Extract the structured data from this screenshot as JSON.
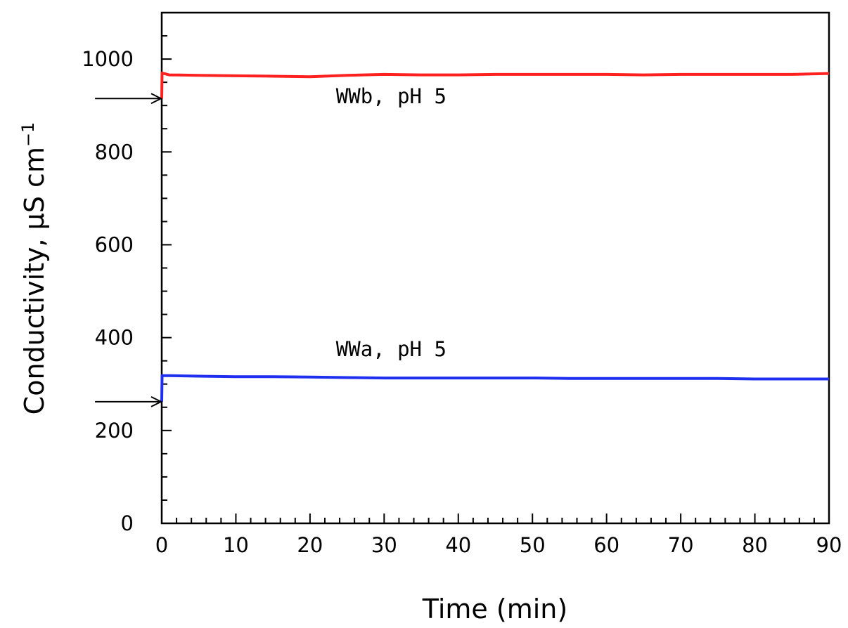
{
  "chart_data": {
    "type": "line",
    "title": "",
    "xlabel": "Time (min)",
    "ylabel": "Conductivity, μS cm",
    "ylabel_exponent": "−1",
    "xlim": [
      0,
      90
    ],
    "ylim": [
      0,
      1100
    ],
    "xticks": [
      0,
      10,
      20,
      30,
      40,
      50,
      60,
      70,
      80,
      90
    ],
    "xtick_labels": [
      "0",
      "10",
      "20",
      "30",
      "40",
      "50",
      "60",
      "70",
      "80",
      "90"
    ],
    "yticks": [
      0,
      200,
      400,
      600,
      800,
      1000
    ],
    "ytick_labels": [
      "0",
      "200",
      "400",
      "600",
      "800",
      "1000"
    ],
    "grid": false,
    "legend": "none",
    "series": [
      {
        "name": "WWb, pH 5",
        "color": "#ff2020",
        "x": [
          0,
          0.05,
          1,
          5,
          10,
          15,
          20,
          25,
          30,
          35,
          40,
          45,
          50,
          55,
          60,
          65,
          70,
          75,
          80,
          85,
          90
        ],
        "y": [
          915,
          970,
          966,
          965,
          964,
          963,
          962,
          965,
          967,
          966,
          966,
          967,
          967,
          967,
          967,
          966,
          967,
          967,
          967,
          967,
          969
        ]
      },
      {
        "name": "WWa, pH 5",
        "color": "#1f2ff0",
        "x": [
          0,
          0.05,
          1,
          5,
          10,
          15,
          20,
          25,
          30,
          35,
          40,
          45,
          50,
          55,
          60,
          65,
          70,
          75,
          80,
          85,
          90
        ],
        "y": [
          262,
          318,
          318,
          317,
          316,
          316,
          315,
          314,
          313,
          313,
          313,
          313,
          313,
          312,
          312,
          312,
          312,
          312,
          311,
          311,
          311
        ]
      }
    ],
    "annotations": [
      {
        "text": "WWb, pH 5",
        "x": 23.5,
        "y": 905
      },
      {
        "text": "WWa, pH 5",
        "x": 23.5,
        "y": 360
      }
    ],
    "arrows": [
      {
        "from_x": -9,
        "to_x": 0,
        "y": 915
      },
      {
        "from_x": -9,
        "to_x": 0,
        "y": 262
      }
    ]
  }
}
